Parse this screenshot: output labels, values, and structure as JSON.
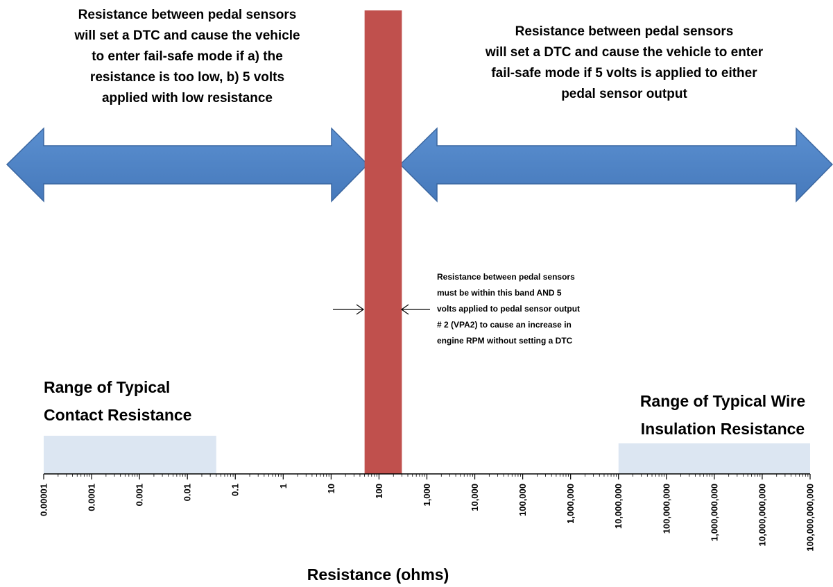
{
  "chart_data": {
    "type": "log-ranges",
    "xlabel": "Resistance (ohms)",
    "log_scale": true,
    "xlim": [
      1e-05,
      100000000000
    ],
    "xticks": [
      1e-05,
      0.0001,
      0.001,
      0.01,
      0.1,
      1,
      10,
      100,
      {
        "value": 1000,
        "label": "1,000"
      },
      {
        "value": 10000,
        "label": "10,000"
      },
      {
        "value": 100000,
        "label": "100,000"
      },
      {
        "value": 1000000,
        "label": "1,000,000"
      },
      {
        "value": 10000000,
        "label": "10,000,000"
      },
      {
        "value": 100000000,
        "label": "100,000,000"
      },
      {
        "value": 1000000000,
        "label": "1,000,000,000"
      },
      {
        "value": 10000000000,
        "label": "10,000,000,000"
      },
      {
        "value": 100000000000,
        "label": "100,000,000,000"
      }
    ],
    "ranges": [
      {
        "label": [
          "Range of Typical",
          "Contact Resistance"
        ],
        "start": 1e-05,
        "end": 0.04,
        "color": "#dce6f2"
      },
      {
        "start": 50,
        "end": 300,
        "color": "#c0504d"
      },
      {
        "label": [
          "Range of Typical Wire",
          "Insulation Resistance"
        ],
        "start": 10000000,
        "end": 100000000000,
        "color": "#dce6f2"
      }
    ],
    "annotations": [
      {
        "lines": [
          "Resistance between pedal sensors",
          "will set a DTC and cause the vehicle",
          "to enter fail-safe mode if a) the",
          "resistance is too low, b) 5 volts",
          "applied with low resistance"
        ]
      },
      {
        "lines": [
          "Resistance between pedal sensors",
          "will set a DTC and cause the vehicle to enter",
          "fail-safe mode if 5 volts is applied to either",
          "pedal sensor output"
        ]
      },
      {
        "lines": [
          "Resistance between pedal sensors",
          "must be within this band AND 5",
          "volts applied to pedal sensor output",
          "# 2 (VPA2) to cause an increase in",
          "engine RPM without setting a DTC"
        ]
      }
    ]
  }
}
